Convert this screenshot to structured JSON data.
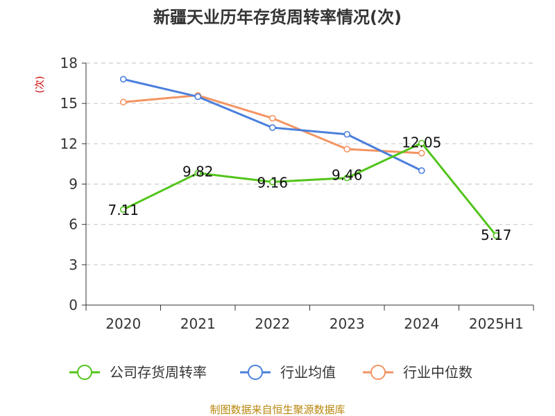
{
  "colors": {
    "company": "#52c41a",
    "industry_avg": "#4a7fdc",
    "industry_median": "#f39462",
    "grid": "#cccccc",
    "axis": "#333333",
    "ylabel": "#cc0000",
    "source": "#b8860b"
  },
  "chart_data": {
    "type": "line",
    "title": "新疆天业历年存货周转率情况(次)",
    "xlabel": "",
    "ylabel": "(次)",
    "categories": [
      "2020",
      "2021",
      "2022",
      "2023",
      "2024",
      "2025H1"
    ],
    "ylim": [
      0,
      18
    ],
    "yticks": [
      "0",
      "3",
      "6",
      "9",
      "12",
      "15",
      "18"
    ],
    "grid": "horizontal-dashed",
    "legend_position": "bottom",
    "series": [
      {
        "name": "公司存货周转率",
        "values": [
          7.11,
          9.82,
          9.16,
          9.46,
          12.05,
          5.17
        ],
        "labels": [
          "7.11",
          "9.82",
          "9.16",
          "9.46",
          "12.05",
          "5.17"
        ]
      },
      {
        "name": "行业均值",
        "values": [
          16.8,
          15.5,
          13.2,
          12.7,
          10.0,
          null
        ]
      },
      {
        "name": "行业中位数",
        "values": [
          15.1,
          15.6,
          13.9,
          11.6,
          11.3,
          null
        ]
      }
    ]
  },
  "source_text": "制图数据来自恒生聚源数据库"
}
